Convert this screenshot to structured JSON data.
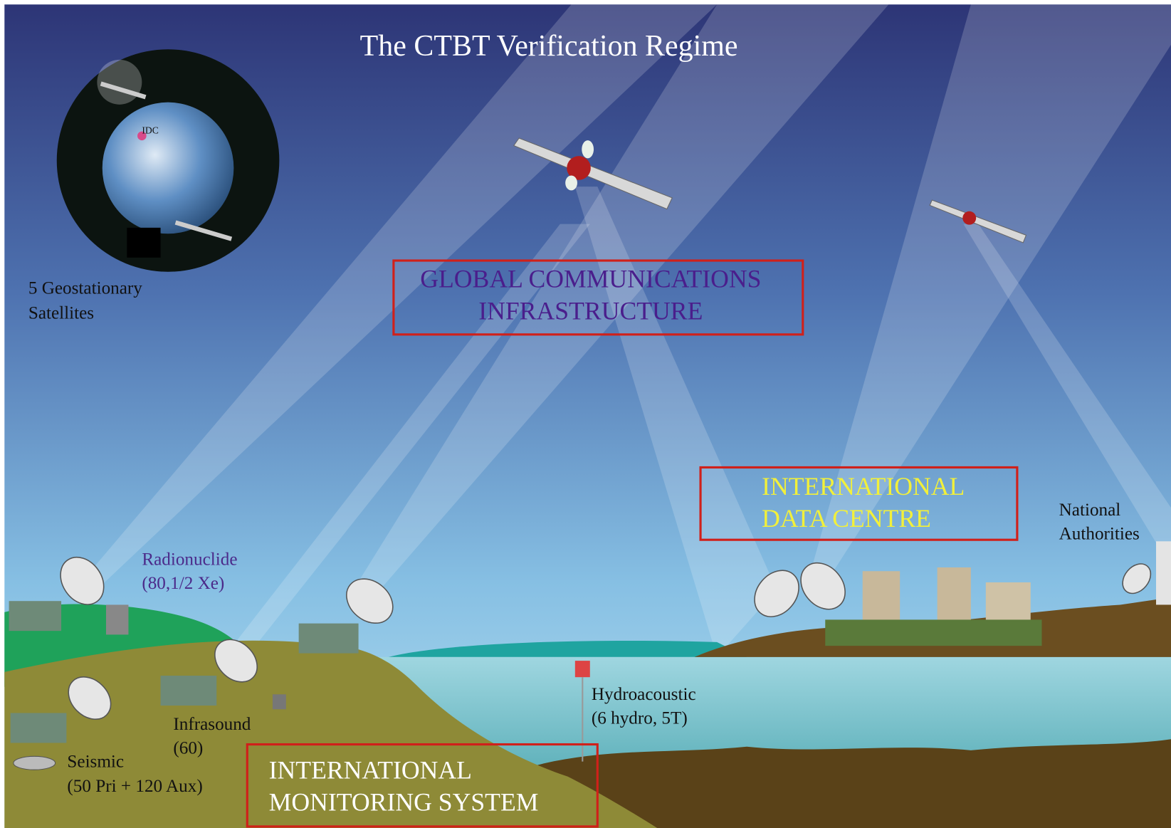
{
  "title": "The CTBT Verification Regime",
  "globe": {
    "label": "IDC",
    "caption": [
      "5 Geostationary",
      "Satellites"
    ]
  },
  "boxes": {
    "communications": [
      "GLOBAL COMMUNICATIONS",
      "INFRASTRUCTURE"
    ],
    "data_centre": [
      "INTERNATIONAL",
      "DATA CENTRE"
    ],
    "monitoring": [
      "INTERNATIONAL",
      "MONITORING SYSTEM"
    ]
  },
  "national_authorities": [
    "National",
    "Authorities"
  ],
  "stations": {
    "radionuclide": [
      "Radionuclide",
      "(80,1/2 Xe)"
    ],
    "infrasound": [
      "Infrasound",
      "(60)"
    ],
    "seismic": [
      "Seismic",
      "(50 Pri + 120 Aux)"
    ],
    "hydroacoustic": [
      "Hydroacoustic",
      "(6 hydro, 5T)"
    ]
  }
}
